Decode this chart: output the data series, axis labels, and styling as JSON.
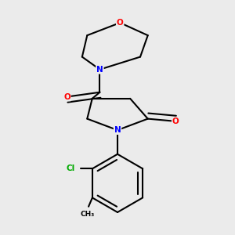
{
  "background_color": "#ebebeb",
  "bond_color": "#000000",
  "atom_colors": {
    "O": "#ff0000",
    "N": "#0000ff",
    "Cl": "#00aa00",
    "C": "#000000"
  },
  "lw": 1.5
}
